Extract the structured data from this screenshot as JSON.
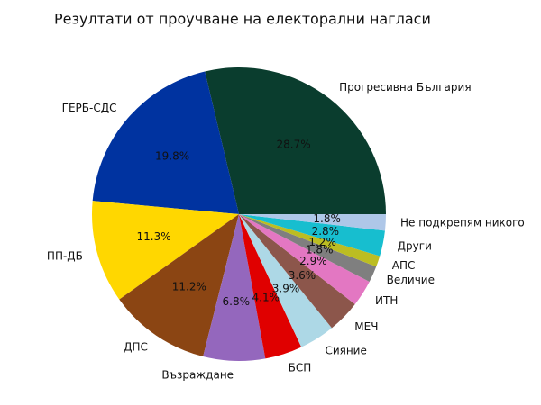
{
  "chart_data": {
    "type": "pie",
    "title": "Резултати от проучване на електорални нагласи",
    "categories": [
      "Прогресивна България",
      "ГЕРБ-СДС",
      "ПП-ДБ",
      "ДПС",
      "Възраждане",
      "БСП",
      "Сияние",
      "МЕЧ",
      "ИТН",
      "Величие",
      "АПС",
      "Други",
      "Не подкрепям никого"
    ],
    "values": [
      28.7,
      19.8,
      11.3,
      11.2,
      6.8,
      4.1,
      3.9,
      3.6,
      2.9,
      1.8,
      1.2,
      2.8,
      1.8
    ],
    "value_labels": [
      "28.7%",
      "19.8%",
      "11.3%",
      "11.2%",
      "6.8%",
      "4.1%",
      "3.9%",
      "3.6%",
      "2.9%",
      "1.8%",
      "1.2%",
      "2.8%",
      "1.8%"
    ],
    "colors": [
      "#0a3d2e",
      "#0033a0",
      "#ffd700",
      "#8b4513",
      "#9467bd",
      "#e00000",
      "#add8e6",
      "#8c564b",
      "#e377c2",
      "#7f7f7f",
      "#bcbd22",
      "#17becf",
      "#aec7e8"
    ]
  }
}
